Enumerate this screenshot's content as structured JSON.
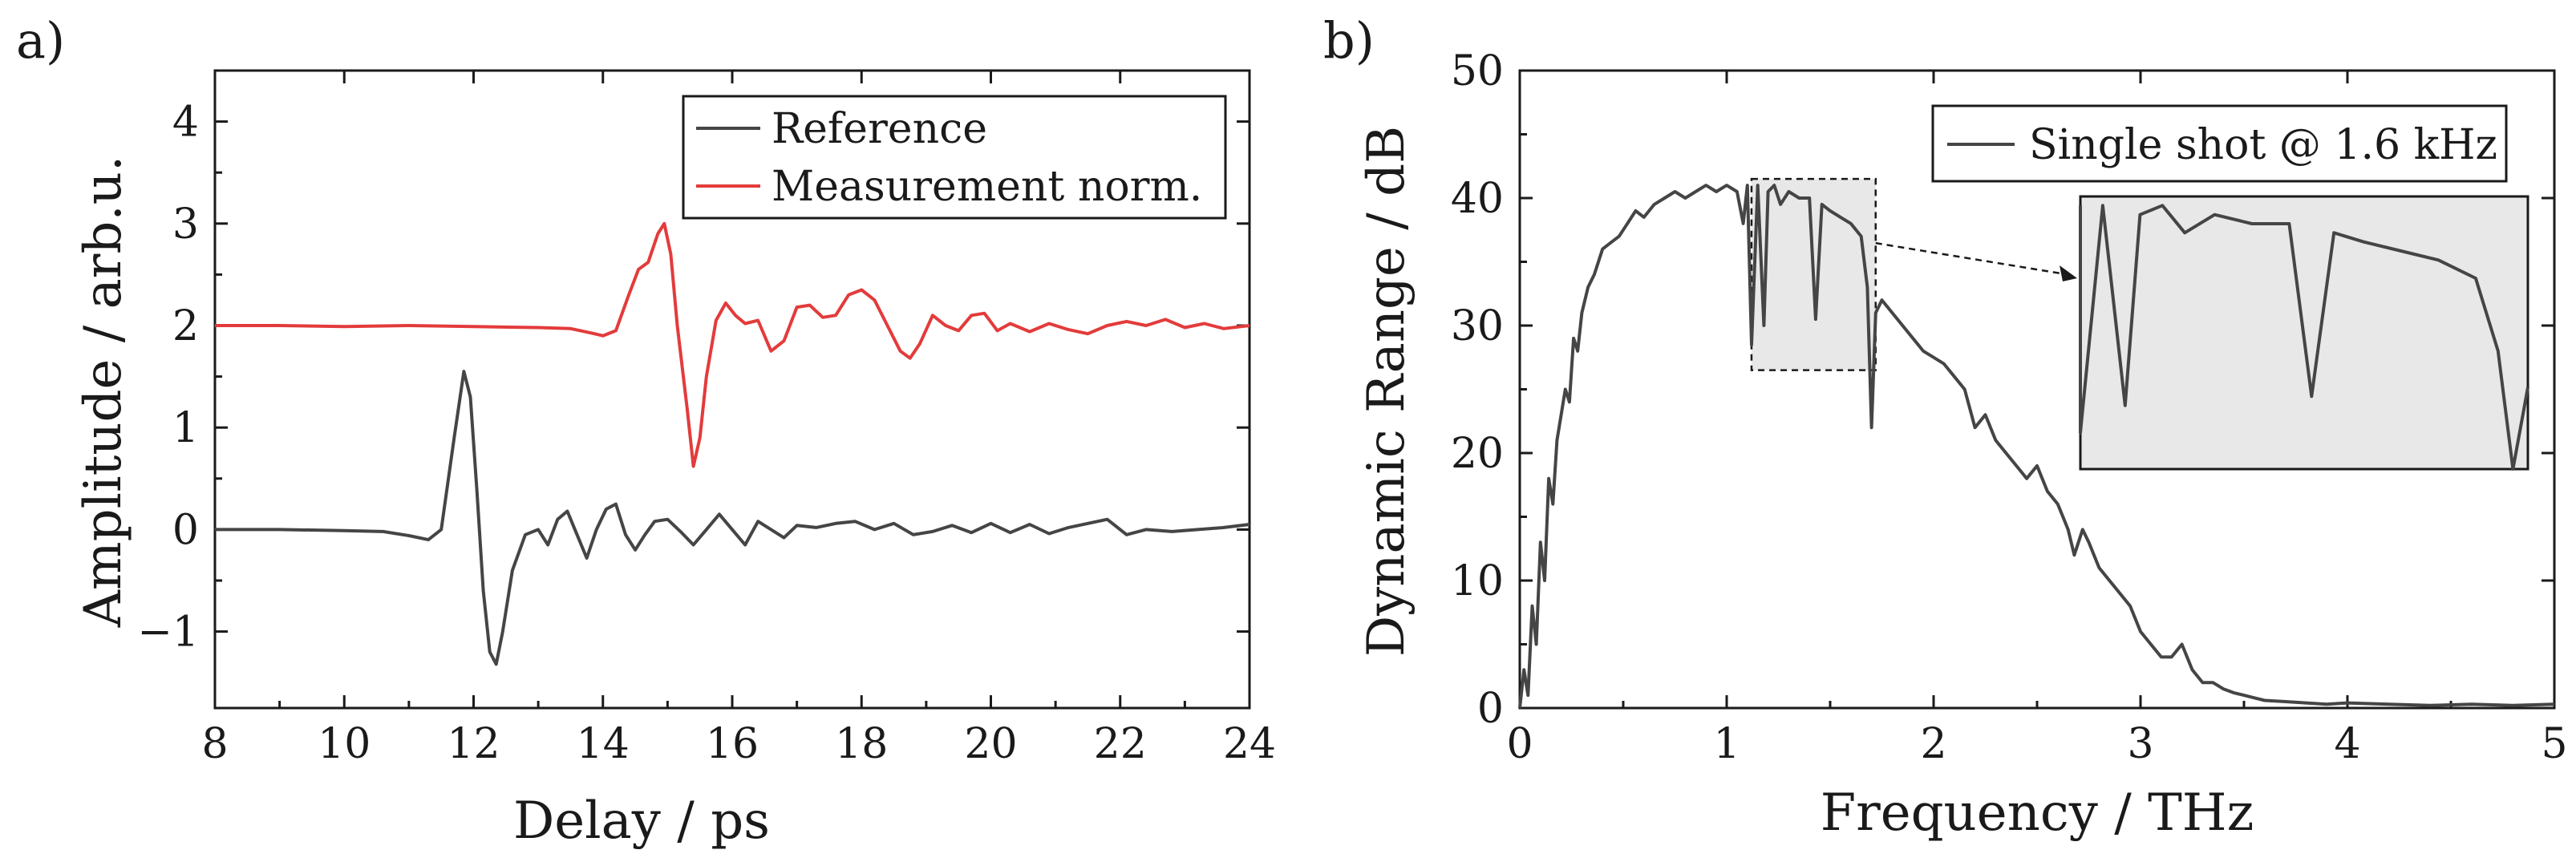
{
  "chart_data": [
    {
      "panel_label": "a)",
      "type": "line",
      "xlabel": "Delay / ps",
      "ylabel": "Amplitude / arb.u.",
      "xlim": [
        8,
        24
      ],
      "ylim": [
        -1.75,
        4.5
      ],
      "xticks": [
        "8",
        "10",
        "12",
        "14",
        "16",
        "18",
        "20",
        "22",
        "24"
      ],
      "yticks": [
        "−1",
        "0",
        "1",
        "2",
        "3",
        "4"
      ],
      "legend_position": "top-right",
      "series": [
        {
          "name": "Reference",
          "color": "#454545",
          "x": [
            8,
            9,
            10,
            10.6,
            11.0,
            11.3,
            11.5,
            11.7,
            11.85,
            11.95,
            12.05,
            12.15,
            12.25,
            12.35,
            12.45,
            12.6,
            12.8,
            13.0,
            13.15,
            13.3,
            13.45,
            13.6,
            13.75,
            13.9,
            14.05,
            14.2,
            14.35,
            14.5,
            14.65,
            14.8,
            15.0,
            15.2,
            15.4,
            15.6,
            15.8,
            16.0,
            16.2,
            16.4,
            16.6,
            16.8,
            17.0,
            17.3,
            17.6,
            17.9,
            18.2,
            18.5,
            18.8,
            19.1,
            19.4,
            19.7,
            20.0,
            20.3,
            20.6,
            20.9,
            21.2,
            21.5,
            21.8,
            22.1,
            22.4,
            22.8,
            23.2,
            23.6,
            24
          ],
          "y": [
            0,
            0,
            -0.01,
            -0.02,
            -0.06,
            -0.1,
            0.0,
            0.9,
            1.55,
            1.3,
            0.4,
            -0.6,
            -1.2,
            -1.32,
            -1.0,
            -0.4,
            -0.05,
            0.0,
            -0.15,
            0.1,
            0.18,
            -0.05,
            -0.28,
            0.0,
            0.2,
            0.25,
            -0.05,
            -0.2,
            -0.05,
            0.08,
            0.1,
            -0.02,
            -0.15,
            0.0,
            0.15,
            0.0,
            -0.15,
            0.08,
            0.0,
            -0.08,
            0.04,
            0.02,
            0.06,
            0.08,
            0.0,
            0.06,
            -0.05,
            -0.02,
            0.04,
            -0.03,
            0.06,
            -0.03,
            0.05,
            -0.04,
            0.02,
            0.06,
            0.1,
            -0.05,
            0.0,
            -0.02,
            0.0,
            0.02,
            0.05
          ]
        },
        {
          "name": "Measurement norm.",
          "color": "#e33b3b",
          "x": [
            8,
            9,
            10,
            11,
            12,
            13,
            13.5,
            13.8,
            14.0,
            14.2,
            14.4,
            14.55,
            14.7,
            14.85,
            14.95,
            15.05,
            15.15,
            15.3,
            15.4,
            15.5,
            15.6,
            15.75,
            15.9,
            16.05,
            16.2,
            16.4,
            16.6,
            16.8,
            17.0,
            17.2,
            17.4,
            17.6,
            17.8,
            18.0,
            18.2,
            18.4,
            18.6,
            18.75,
            18.9,
            19.1,
            19.3,
            19.5,
            19.7,
            19.9,
            20.1,
            20.3,
            20.6,
            20.9,
            21.2,
            21.5,
            21.8,
            22.1,
            22.4,
            22.7,
            23.0,
            23.3,
            23.6,
            24
          ],
          "y": [
            2.0,
            2.0,
            1.99,
            2.0,
            1.99,
            1.98,
            1.97,
            1.93,
            1.9,
            1.95,
            2.3,
            2.55,
            2.62,
            2.9,
            3.0,
            2.7,
            2.0,
            1.2,
            0.62,
            0.9,
            1.5,
            2.05,
            2.22,
            2.1,
            2.02,
            2.05,
            1.75,
            1.85,
            2.18,
            2.2,
            2.08,
            2.1,
            2.3,
            2.35,
            2.25,
            2.0,
            1.75,
            1.68,
            1.82,
            2.1,
            2.0,
            1.95,
            2.1,
            2.12,
            1.95,
            2.02,
            1.94,
            2.02,
            1.96,
            1.92,
            2.0,
            2.04,
            2.0,
            2.06,
            1.98,
            2.02,
            1.97,
            2.0
          ]
        }
      ]
    },
    {
      "panel_label": "b)",
      "type": "line",
      "xlabel": "Frequency / THz",
      "ylabel": "Dynamic Range / dB",
      "xlim": [
        0,
        5
      ],
      "ylim": [
        0,
        50
      ],
      "xticks": [
        "0",
        "1",
        "2",
        "3",
        "4",
        "5"
      ],
      "yticks": [
        "0",
        "10",
        "20",
        "30",
        "40",
        "50"
      ],
      "legend_position": "top-right",
      "inset": {
        "xrange": [
          1.12,
          1.72
        ],
        "yrange": [
          26.5,
          41.5
        ],
        "fill": "#e8e8e8"
      },
      "series": [
        {
          "name": "Single shot @ 1.6 kHz",
          "color": "#454545",
          "x": [
            0,
            0.02,
            0.04,
            0.06,
            0.08,
            0.1,
            0.12,
            0.14,
            0.16,
            0.18,
            0.2,
            0.22,
            0.24,
            0.26,
            0.28,
            0.3,
            0.33,
            0.36,
            0.4,
            0.44,
            0.48,
            0.52,
            0.56,
            0.6,
            0.65,
            0.7,
            0.75,
            0.8,
            0.85,
            0.9,
            0.95,
            1.0,
            1.05,
            1.08,
            1.1,
            1.12,
            1.15,
            1.18,
            1.2,
            1.23,
            1.26,
            1.3,
            1.35,
            1.4,
            1.43,
            1.46,
            1.5,
            1.55,
            1.6,
            1.65,
            1.68,
            1.7,
            1.72,
            1.75,
            1.8,
            1.85,
            1.9,
            1.95,
            2.0,
            2.05,
            2.1,
            2.15,
            2.2,
            2.25,
            2.3,
            2.35,
            2.4,
            2.45,
            2.5,
            2.55,
            2.6,
            2.65,
            2.68,
            2.72,
            2.75,
            2.8,
            2.85,
            2.9,
            2.95,
            3.0,
            3.05,
            3.1,
            3.15,
            3.2,
            3.25,
            3.3,
            3.35,
            3.4,
            3.45,
            3.5,
            3.55,
            3.6,
            3.7,
            3.8,
            3.9,
            4.0,
            4.2,
            4.4,
            4.6,
            4.8,
            5.0
          ],
          "y": [
            0,
            3,
            1,
            8,
            5,
            13,
            10,
            18,
            16,
            21,
            23,
            25,
            24,
            29,
            28,
            31,
            33,
            34,
            36,
            36.5,
            37,
            38,
            39,
            38.5,
            39.5,
            40,
            40.5,
            40,
            40.5,
            41,
            40.5,
            41,
            40.5,
            38,
            41,
            28.5,
            41,
            30,
            40.5,
            41,
            39.5,
            40.5,
            40,
            40,
            30.5,
            39.5,
            39,
            38.5,
            38,
            37,
            33,
            22,
            31,
            32,
            31,
            30,
            29,
            28,
            27.5,
            27,
            26,
            25,
            22,
            23,
            21,
            20,
            19,
            18,
            19,
            17,
            16,
            14,
            12,
            14,
            13,
            11,
            10,
            9,
            8,
            6,
            5,
            4,
            4,
            5,
            3,
            2,
            2,
            1.5,
            1.2,
            1.0,
            0.8,
            0.6,
            0.5,
            0.4,
            0.3,
            0.4,
            0.3,
            0.2,
            0.3,
            0.2,
            0.3
          ]
        }
      ]
    }
  ]
}
